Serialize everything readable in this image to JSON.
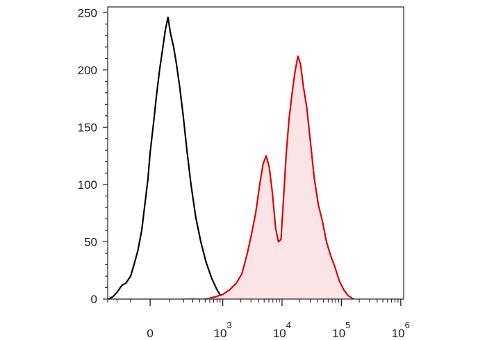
{
  "chart_data": {
    "type": "area",
    "title": "",
    "xlabel": "",
    "ylabel": "",
    "x_scale": "biexponential",
    "ylim": [
      0,
      255
    ],
    "grid": false,
    "legend": "none",
    "y_ticks": [
      {
        "value": 0,
        "label": "0"
      },
      {
        "value": 50,
        "label": "50"
      },
      {
        "value": 100,
        "label": "100"
      },
      {
        "value": 150,
        "label": "150"
      },
      {
        "value": 200,
        "label": "200"
      },
      {
        "value": 250,
        "label": "250"
      }
    ],
    "x_ticks": [
      {
        "value": 0,
        "base": "0",
        "exp": ""
      },
      {
        "value": 1000,
        "base": "10",
        "exp": "3"
      },
      {
        "value": 10000,
        "base": "10",
        "exp": "4"
      },
      {
        "value": 100000,
        "base": "10",
        "exp": "5"
      },
      {
        "value": 1000000,
        "base": "10",
        "exp": "6"
      }
    ],
    "series": [
      {
        "color": "#000000",
        "fill": "none",
        "points": [
          [
            -290,
            0
          ],
          [
            -240,
            2
          ],
          [
            -200,
            6
          ],
          [
            -160,
            12
          ],
          [
            -130,
            14
          ],
          [
            -100,
            20
          ],
          [
            -80,
            30
          ],
          [
            -60,
            42
          ],
          [
            -40,
            60
          ],
          [
            -25,
            82
          ],
          [
            -10,
            105
          ],
          [
            0,
            128
          ],
          [
            15,
            152
          ],
          [
            30,
            178
          ],
          [
            45,
            200
          ],
          [
            60,
            218
          ],
          [
            75,
            235
          ],
          [
            90,
            246
          ],
          [
            105,
            232
          ],
          [
            125,
            220
          ],
          [
            145,
            205
          ],
          [
            170,
            185
          ],
          [
            200,
            160
          ],
          [
            235,
            130
          ],
          [
            280,
            100
          ],
          [
            340,
            72
          ],
          [
            420,
            50
          ],
          [
            520,
            32
          ],
          [
            650,
            18
          ],
          [
            800,
            8
          ],
          [
            950,
            2
          ],
          [
            1050,
            0
          ]
        ]
      },
      {
        "color": "#e00000",
        "fill": "#fbe4e6",
        "points": [
          [
            500,
            0
          ],
          [
            750,
            2
          ],
          [
            1000,
            4
          ],
          [
            1300,
            8
          ],
          [
            1700,
            14
          ],
          [
            2100,
            22
          ],
          [
            2600,
            40
          ],
          [
            3100,
            58
          ],
          [
            3600,
            75
          ],
          [
            4200,
            100
          ],
          [
            4800,
            118
          ],
          [
            5400,
            125
          ],
          [
            6100,
            115
          ],
          [
            6900,
            92
          ],
          [
            7800,
            62
          ],
          [
            8700,
            50
          ],
          [
            9600,
            52
          ],
          [
            10600,
            88
          ],
          [
            11800,
            128
          ],
          [
            13200,
            158
          ],
          [
            14800,
            180
          ],
          [
            16500,
            198
          ],
          [
            18500,
            212
          ],
          [
            20500,
            205
          ],
          [
            23000,
            185
          ],
          [
            26000,
            168
          ],
          [
            30000,
            138
          ],
          [
            35000,
            105
          ],
          [
            41000,
            82
          ],
          [
            48000,
            68
          ],
          [
            56000,
            50
          ],
          [
            66000,
            38
          ],
          [
            78000,
            28
          ],
          [
            92000,
            16
          ],
          [
            110000,
            8
          ],
          [
            130000,
            3
          ],
          [
            160000,
            0
          ]
        ]
      },
      {
        "color": "#bbbbbb",
        "fill": "none",
        "points": [
          [
            -290,
            0
          ],
          [
            200,
            0
          ],
          [
            320,
            1
          ],
          [
            400,
            0
          ],
          [
            550,
            1
          ],
          [
            700,
            0
          ],
          [
            1000,
            0
          ]
        ]
      }
    ]
  }
}
